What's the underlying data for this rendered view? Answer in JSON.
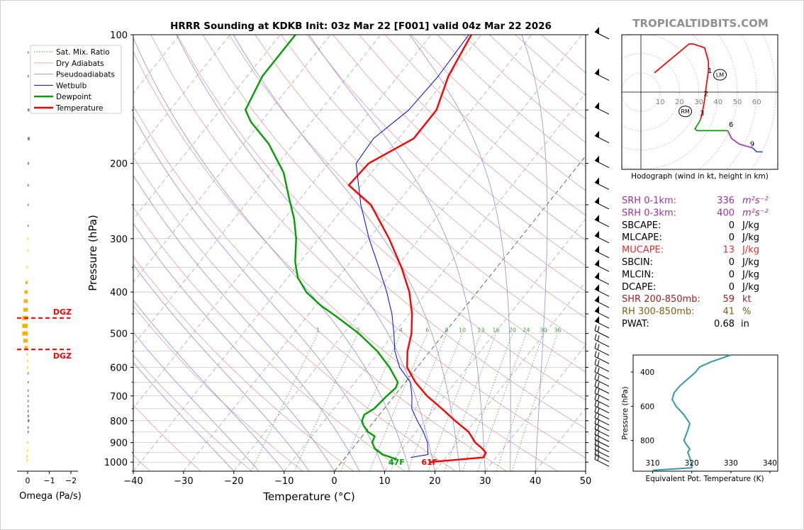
{
  "chart_data": {
    "type": "skew-t",
    "title": "HRRR Sounding at KDKB Init: 03z Mar 22 [F001] valid 04z Mar 22 2026",
    "brand": "TROPICALTIDBITS.COM",
    "xlabel": "Temperature (°C)",
    "ylabel": "Pressure (hPa)",
    "xlim": [
      -40,
      50
    ],
    "ylim": [
      1050,
      100
    ],
    "x_ticks": [
      "−40",
      "−30",
      "−20",
      "−10",
      "0",
      "10",
      "20",
      "30",
      "40",
      "50"
    ],
    "y_ticks": [
      "100",
      "200",
      "300",
      "400",
      "500",
      "600",
      "700",
      "800",
      "900",
      "1000"
    ],
    "legend": {
      "placement": "top-left",
      "entries": [
        "Sat. Mix. Ratio",
        "Dry Adiabats",
        "Pseudoadiabats",
        "Wetbulb",
        "Dewpoint",
        "Temperature"
      ]
    },
    "colors": {
      "temperature": "#ff0000",
      "dewpoint": "#00a000",
      "wetbulb": "#0000ee",
      "dry": "#d08080",
      "moist": "#8080d0",
      "mix": "#30a030"
    },
    "temperature": [
      [
        1000,
        17.5
      ],
      [
        975,
        27.5
      ],
      [
        950,
        27.2
      ],
      [
        925,
        25.5
      ],
      [
        900,
        23.5
      ],
      [
        850,
        20.5
      ],
      [
        800,
        16.0
      ],
      [
        750,
        11.5
      ],
      [
        700,
        6.5
      ],
      [
        650,
        2.0
      ],
      [
        600,
        -2.0
      ],
      [
        550,
        -4.5
      ],
      [
        500,
        -6.5
      ],
      [
        450,
        -9.5
      ],
      [
        400,
        -13.5
      ],
      [
        350,
        -19.0
      ],
      [
        300,
        -26.0
      ],
      [
        250,
        -35.0
      ],
      [
        225,
        -42.5
      ],
      [
        200,
        -42.0
      ],
      [
        175,
        -37.0
      ],
      [
        150,
        -37.0
      ],
      [
        125,
        -40.0
      ],
      [
        100,
        -42.0
      ]
    ],
    "dewpoint": [
      [
        985,
        10.5
      ],
      [
        960,
        7.0
      ],
      [
        930,
        4.5
      ],
      [
        900,
        3.0
      ],
      [
        870,
        2.5
      ],
      [
        850,
        0.5
      ],
      [
        820,
        -1.5
      ],
      [
        800,
        -2.5
      ],
      [
        775,
        -3.0
      ],
      [
        750,
        -2.0
      ],
      [
        700,
        -1.5
      ],
      [
        670,
        -1.0
      ],
      [
        650,
        -1.5
      ],
      [
        600,
        -5.5
      ],
      [
        550,
        -10.5
      ],
      [
        500,
        -17.0
      ],
      [
        460,
        -23.5
      ],
      [
        430,
        -29.0
      ],
      [
        400,
        -34.0
      ],
      [
        370,
        -38.0
      ],
      [
        340,
        -41.0
      ],
      [
        300,
        -44.5
      ],
      [
        270,
        -48.0
      ],
      [
        240,
        -52.5
      ],
      [
        210,
        -57.5
      ],
      [
        180,
        -65.0
      ],
      [
        160,
        -72.0
      ],
      [
        150,
        -75.0
      ],
      [
        125,
        -77.0
      ],
      [
        100,
        -77.0
      ]
    ],
    "wetbulb": [
      [
        975,
        13.0
      ],
      [
        960,
        16.0
      ],
      [
        900,
        14.0
      ],
      [
        850,
        11.5
      ],
      [
        800,
        8.5
      ],
      [
        750,
        5.5
      ],
      [
        700,
        3.5
      ],
      [
        650,
        1.0
      ],
      [
        600,
        -3.5
      ],
      [
        550,
        -7.0
      ],
      [
        500,
        -10.0
      ],
      [
        450,
        -13.5
      ],
      [
        400,
        -18.0
      ],
      [
        350,
        -23.5
      ],
      [
        300,
        -30.0
      ],
      [
        250,
        -37.0
      ],
      [
        200,
        -44.5
      ],
      [
        175,
        -45.0
      ],
      [
        150,
        -42.5
      ],
      [
        125,
        -42.0
      ],
      [
        100,
        -42.5
      ]
    ],
    "mixing_ratio_labels": [
      "1",
      "2",
      "4",
      "6",
      "8",
      "10",
      "13",
      "16",
      "20",
      "24",
      "30",
      "36"
    ],
    "surface_labels": {
      "dewpoint": "47F",
      "temperature": "61F"
    },
    "omega": {
      "xlabel": "Omega (Pa/s)",
      "ticks": [
        "0",
        "−1",
        "−2"
      ],
      "dgz_label": "DGZ",
      "values": [
        [
          990,
          0.05
        ],
        [
          970,
          0.05
        ],
        [
          940,
          0.03
        ],
        [
          900,
          0.02
        ],
        [
          850,
          -0.05
        ],
        [
          830,
          -0.05
        ],
        [
          800,
          -0.08
        ],
        [
          780,
          -0.06
        ],
        [
          760,
          -0.05
        ],
        [
          740,
          -0.03
        ],
        [
          720,
          -0.02
        ],
        [
          700,
          -0.01
        ],
        [
          680,
          0.0
        ],
        [
          650,
          0.0
        ],
        [
          620,
          0.0
        ],
        [
          600,
          0.02
        ],
        [
          580,
          0.03
        ],
        [
          560,
          0.05
        ],
        [
          540,
          0.15
        ],
        [
          520,
          0.2
        ],
        [
          500,
          0.25
        ],
        [
          480,
          0.25
        ],
        [
          460,
          0.25
        ],
        [
          440,
          0.2
        ],
        [
          420,
          0.18
        ],
        [
          400,
          0.15
        ],
        [
          380,
          0.1
        ],
        [
          350,
          0.05
        ],
        [
          320,
          0.02
        ],
        [
          300,
          0.01
        ],
        [
          280,
          0.0
        ],
        [
          250,
          0.0
        ],
        [
          225,
          -0.05
        ],
        [
          200,
          -0.06
        ],
        [
          175,
          -0.1
        ],
        [
          150,
          -0.08
        ],
        [
          125,
          -0.05
        ],
        [
          110,
          0.0
        ]
      ]
    },
    "hodograph": {
      "caption": "Hodograph (wind in kt, height in km)",
      "ring_labels": [
        "10",
        "20",
        "30",
        "40",
        "50",
        "60"
      ],
      "height_labels": [
        "1",
        "2",
        "3",
        "6",
        "9"
      ],
      "markers": [
        "LM",
        "RM"
      ],
      "segments": [
        {
          "color": "#ff0000",
          "points": [
            [
              7,
              10
            ],
            [
              25,
              25
            ],
            [
              27,
              25
            ],
            [
              33,
              23
            ],
            [
              35,
              16
            ],
            [
              35,
              11
            ],
            [
              34,
              4
            ],
            [
              33,
              -4
            ],
            [
              32,
              -10
            ],
            [
              31,
              -14
            ]
          ]
        },
        {
          "color": "#00a000",
          "points": [
            [
              31,
              -14
            ],
            [
              30,
              -16
            ],
            [
              28,
              -19
            ],
            [
              29,
              -20
            ],
            [
              45,
              -20
            ]
          ]
        },
        {
          "color": "#a030c0",
          "points": [
            [
              45,
              -20
            ],
            [
              47,
              -24
            ],
            [
              51,
              -27
            ],
            [
              58,
              -29
            ]
          ]
        },
        {
          "color": "#3050e0",
          "points": [
            [
              58,
              -29
            ],
            [
              60,
              -31
            ],
            [
              63,
              -31
            ]
          ]
        }
      ],
      "lm": [
        41,
        9
      ],
      "rm": [
        23,
        -10
      ]
    },
    "indices": [
      {
        "label": "SRH 0-1km:",
        "value": "336",
        "unit": "m²s⁻²",
        "color": "#a030a0"
      },
      {
        "label": "SRH 0-3km:",
        "value": "400",
        "unit": "m²s⁻²",
        "color": "#a030a0"
      },
      {
        "label": "SBCAPE:",
        "value": "0",
        "unit": "J/kg",
        "color": "#000000"
      },
      {
        "label": "MLCAPE:",
        "value": "0",
        "unit": "J/kg",
        "color": "#000000"
      },
      {
        "label": "MUCAPE:",
        "value": "13",
        "unit": "J/kg",
        "color": "#e03030"
      },
      {
        "label": "SBCIN:",
        "value": "0",
        "unit": "J/kg",
        "color": "#000000"
      },
      {
        "label": "MLCIN:",
        "value": "0",
        "unit": "J/kg",
        "color": "#000000"
      },
      {
        "label": "DCAPE:",
        "value": "0",
        "unit": "J/kg",
        "color": "#000000"
      },
      {
        "label": "SHR 200-850mb:",
        "value": "59",
        "unit": "kt",
        "color": "#a02020"
      },
      {
        "label": "RH 300-850mb:",
        "value": "41",
        "unit": "%",
        "color": "#806010"
      },
      {
        "label": "PWAT:",
        "value": "0.68",
        "unit": "in",
        "color": "#000000"
      }
    ],
    "theta_e": {
      "xlabel": "Equivalent Pot. Temperature (K)",
      "ylabel": "Pressure (hPa)",
      "x_ticks": [
        "310",
        "320",
        "330",
        "340"
      ],
      "y_ticks": [
        "400",
        "600",
        "800"
      ],
      "xlim": [
        305,
        342
      ],
      "ylim": [
        980,
        300
      ],
      "values": [
        [
          975,
          310
        ],
        [
          960,
          320
        ],
        [
          940,
          320
        ],
        [
          900,
          319.5
        ],
        [
          870,
          319
        ],
        [
          850,
          319.5
        ],
        [
          820,
          318.5
        ],
        [
          800,
          318
        ],
        [
          770,
          318.5
        ],
        [
          740,
          319
        ],
        [
          700,
          319.5
        ],
        [
          650,
          318
        ],
        [
          600,
          316
        ],
        [
          560,
          315
        ],
        [
          520,
          315.5
        ],
        [
          480,
          317
        ],
        [
          440,
          319
        ],
        [
          400,
          321
        ],
        [
          370,
          322
        ],
        [
          340,
          325
        ],
        [
          300,
          330
        ]
      ]
    }
  }
}
